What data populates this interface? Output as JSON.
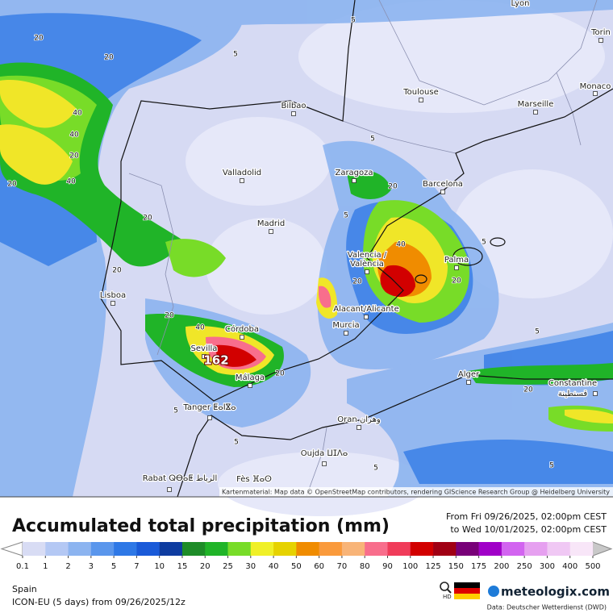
{
  "title": "Accumulated total precipitation (mm)",
  "period": {
    "from": "From Fri 09/26/2025, 02:00pm CEST",
    "to": "to Wed 10/01/2025, 02:00pm CEST"
  },
  "region": "Spain",
  "model_run": "ICON-EU (5 days) from 09/26/2025/12z",
  "hd_label": "HD",
  "brand": "meteologix.com",
  "data_credit": "Data: Deutscher Wetterdienst (DWD)",
  "attribution": "Kartenmaterial: Map data © OpenStreetMap contributors, rendering GIScience Research Group @ Heidelberg University",
  "cities": [
    "Lyon",
    "Torin",
    "Monaco",
    "Toulouse",
    "Marseille",
    "Bilbao",
    "Valladolid",
    "Zaragoza",
    "Barcelona",
    "Madrid",
    "Valencia /",
    "València",
    "Palma",
    "Lisboa",
    "Alacant/Alicante",
    "Murcia",
    "Córdoba",
    "Sevilla",
    "Málaga",
    "Tanger ⵟⴰⵏⴵⴰ",
    "Alger",
    "Constantine",
    "قسنطينة",
    "Oran وهران",
    "Oujda ⵡⵊⴷⴰ",
    "Fès ⴼⴰⵙ",
    "Rabat ⵕⴱⴰⵟ الرباط"
  ],
  "contour_labels": [
    "20",
    "20",
    "5",
    "40",
    "40",
    "20",
    "40",
    "20",
    "5",
    "5",
    "20",
    "5",
    "40",
    "20",
    "5",
    "5",
    "20",
    "20",
    "40",
    "162",
    "20",
    "20",
    "5",
    "5",
    "5",
    "5",
    "20",
    "20"
  ],
  "legend": {
    "ticks": [
      0.1,
      1,
      2,
      3,
      5,
      7,
      10,
      15,
      20,
      25,
      30,
      40,
      50,
      60,
      70,
      80,
      90,
      100,
      125,
      150,
      175,
      200,
      250,
      300,
      400,
      500
    ],
    "colors": [
      "#d8dcf4",
      "#b4c8f4",
      "#8cb4f0",
      "#5a96ec",
      "#2e78e6",
      "#1a5ad8",
      "#0e3ca0",
      "#1e8c28",
      "#20b428",
      "#78dc28",
      "#f0f028",
      "#e6d200",
      "#f08c00",
      "#fa9a3c",
      "#f8b478",
      "#f86e8c",
      "#f03c5a",
      "#d20000",
      "#a00014",
      "#780078",
      "#a000c8",
      "#d264f0",
      "#e6a0f0",
      "#f0c8f4",
      "#f8e6f8"
    ],
    "under_color": "#ffffff",
    "over_color": "#c8c8c8"
  }
}
